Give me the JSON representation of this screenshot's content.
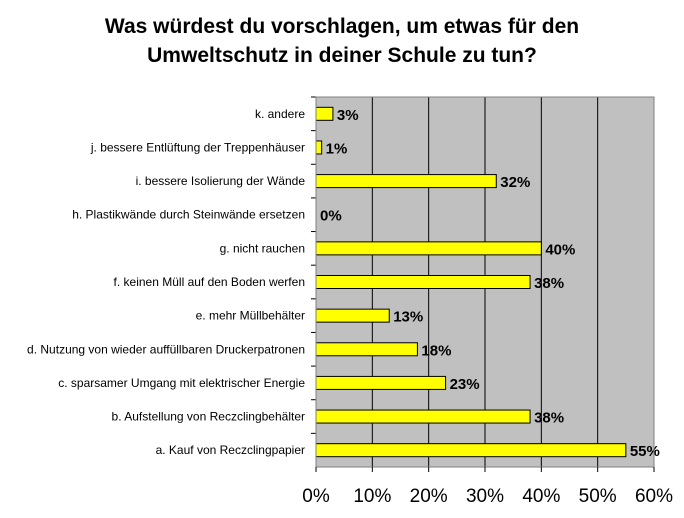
{
  "chart_data": {
    "type": "bar",
    "orientation": "horizontal",
    "title_line1": "Was würdest du vorschlagen, um etwas für den",
    "title_line2": "Umweltschutz in deiner Schule zu tun?",
    "categories": [
      "k. andere",
      "j. bessere Entlüftung der Treppenhäuser",
      "i. bessere Isolierung der Wände",
      "h. Plastikwände durch Steinwände ersetzen",
      "g. nicht rauchen",
      "f. keinen Müll auf den Boden werfen",
      "e. mehr Müllbehälter",
      "d. Nutzung von wieder auffüllbaren Druckerpatronen",
      "c. sparsamer Umgang mit elektrischer Energie",
      "b. Aufstellung von Reczclingbehälter",
      "a. Kauf von Reczclingpapier"
    ],
    "values": [
      3,
      1,
      32,
      0,
      40,
      38,
      13,
      18,
      23,
      38,
      55
    ],
    "value_labels": [
      "3%",
      "1%",
      "32%",
      "0%",
      "40%",
      "38%",
      "13%",
      "18%",
      "23%",
      "38%",
      "55%"
    ],
    "xlim": [
      0,
      60
    ],
    "x_ticks": [
      0,
      10,
      20,
      30,
      40,
      50,
      60
    ],
    "x_tick_labels": [
      "0%",
      "10%",
      "20%",
      "30%",
      "40%",
      "50%",
      "60%"
    ],
    "grid": true,
    "xlabel": "",
    "ylabel": "",
    "colors": {
      "bar_fill": "#ffff00",
      "bar_stroke": "#000000",
      "plot_background": "#c0c0c0",
      "gridline": "#000000"
    }
  }
}
